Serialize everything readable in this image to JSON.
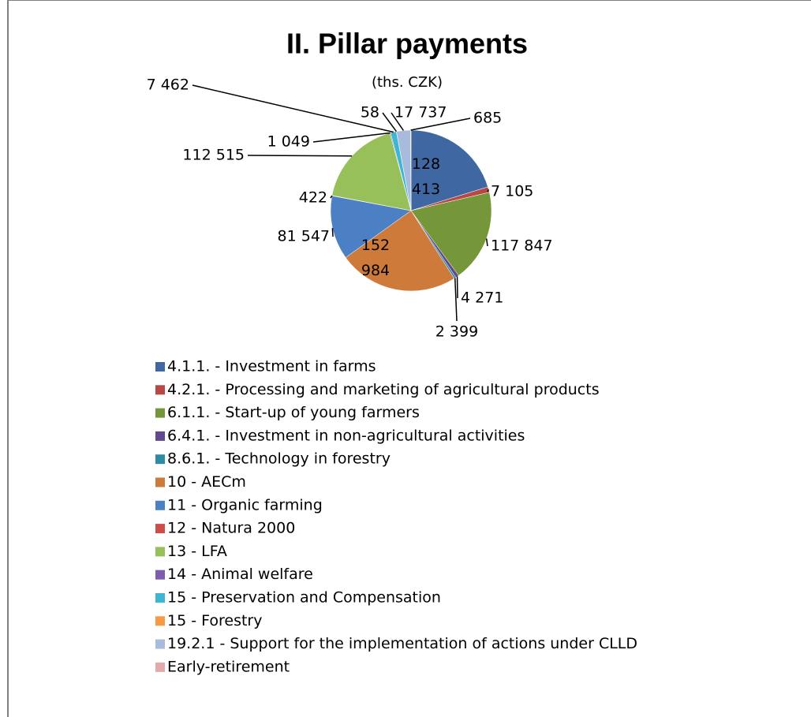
{
  "chart_data": {
    "type": "pie",
    "title": "II. Pillar payments",
    "subtitle": "(ths. CZK)",
    "categories": [
      "4.1.1. - Investment in farms",
      "4.2.1. - Processing and marketing of agricultural products",
      "6.1.1. - Start-up of young farmers",
      "6.4.1. - Investment in non-agricultural activities",
      "8.6.1. - Technology in forestry",
      "10 - AECm",
      "11 - Organic farming",
      "12 - Natura 2000",
      "13 - LFA",
      "14 - Animal welfare",
      "15 - Preservation and Compensation",
      "15 - Forestry",
      "19.2.1 - Support for the implementation of actions under CLLD",
      "Early-retirement"
    ],
    "values": [
      128413,
      7105,
      117847,
      4271,
      2399,
      152984,
      81547,
      422,
      112515,
      1049,
      7462,
      58,
      17737,
      685
    ],
    "value_labels": [
      "128 413",
      "7 105",
      "117 847",
      "4 271",
      "2 399",
      "152 984",
      "81 547",
      "422",
      "112 515",
      "1 049",
      "7 462",
      "58",
      "17 737",
      "685"
    ],
    "colors": [
      "#3F68A2",
      "#B84845",
      "#76963A",
      "#60498C",
      "#2F8BA3",
      "#CE7A3A",
      "#4C80C4",
      "#CC4E4B",
      "#98C05A",
      "#7E5BAE",
      "#3CB6D2",
      "#F79A46",
      "#A9BBDD",
      "#E2AAAA"
    ]
  }
}
